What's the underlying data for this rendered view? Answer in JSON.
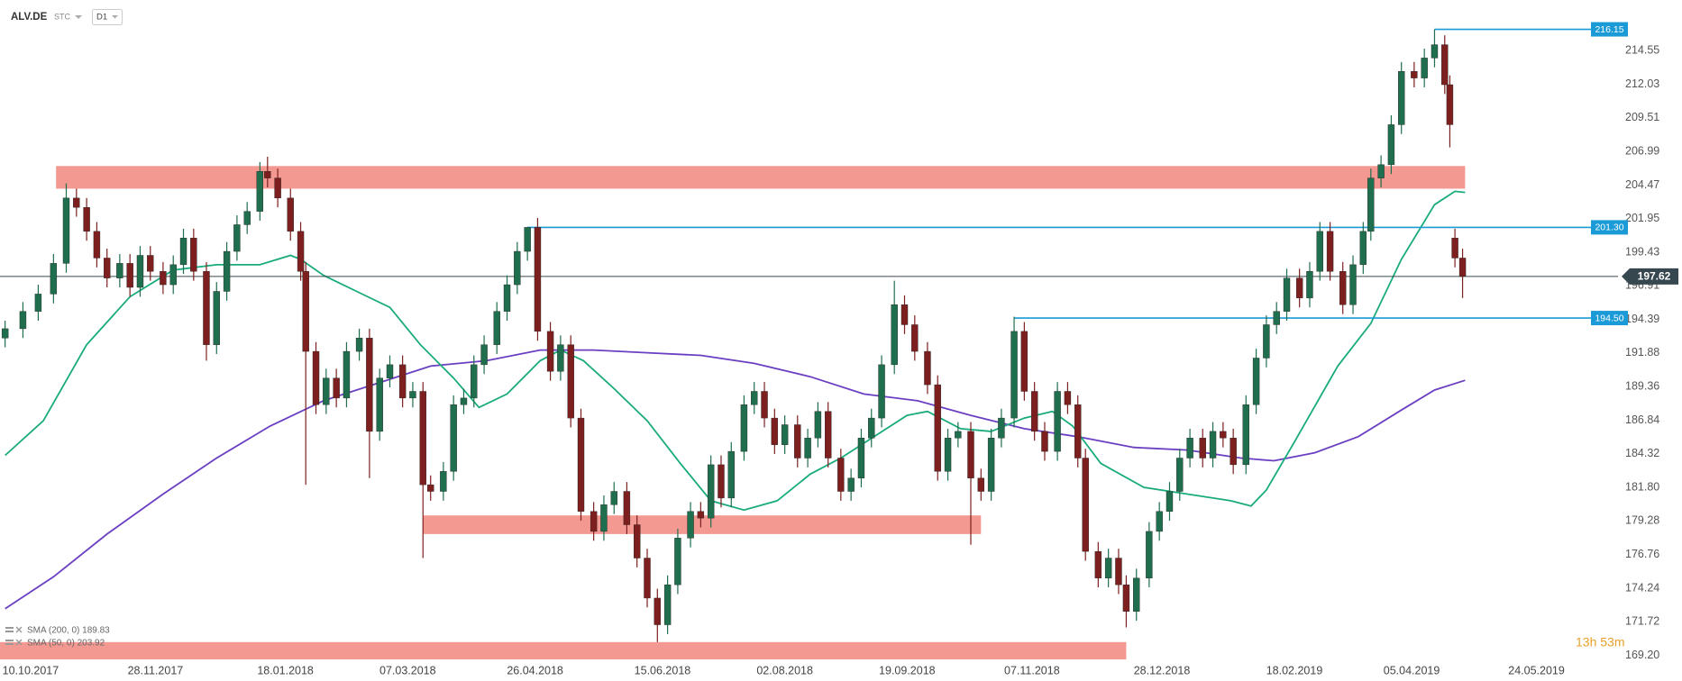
{
  "header": {
    "symbol": "ALV.DE",
    "instrument_type": "STC",
    "interval": "D1"
  },
  "countdown": "13h 53m",
  "chart_data": {
    "type": "candlestick",
    "up_color": "#1f6e4d",
    "down_color": "#7d1f1f",
    "dates": [
      "30.09.2017",
      "07.10.2017",
      "13.10.2017",
      "19.10.2017",
      "24.10.2017",
      "28.10.2017",
      "01.11.2017",
      "05.11.2017",
      "09.11.2017",
      "14.11.2017",
      "18.11.2017",
      "22.11.2017",
      "26.11.2017",
      "01.12.2017",
      "05.12.2017",
      "09.12.2017",
      "13.12.2017",
      "18.12.2017",
      "22.12.2017",
      "26.12.2017",
      "30.12.2017",
      "03.01.2018",
      "08.01.2018",
      "11.01.2018",
      "15.01.2018",
      "20.01.2018",
      "24.01.2018",
      "26.01.2018",
      "30.01.2018",
      "03.02.2018",
      "07.02.2018",
      "11.02.2018",
      "16.02.2018",
      "20.02.2018",
      "24.02.2018",
      "28.02.2018",
      "05.03.2018",
      "09.03.2018",
      "13.03.2018",
      "16.03.2018",
      "21.03.2018",
      "25.03.2018",
      "29.03.2018",
      "02.04.2018",
      "06.04.2018",
      "11.04.2018",
      "15.04.2018",
      "19.04.2018",
      "23.04.2018",
      "27.04.2018",
      "02.05.2018",
      "06.05.2018",
      "10.05.2018",
      "14.05.2018",
      "19.05.2018",
      "23.05.2018",
      "27.05.2018",
      "01.06.2018",
      "05.06.2018",
      "09.06.2018",
      "13.06.2018",
      "17.06.2018",
      "21.06.2018",
      "26.06.2018",
      "30.06.2018",
      "04.07.2018",
      "08.07.2018",
      "12.07.2018",
      "17.07.2018",
      "21.07.2018",
      "25.07.2018",
      "29.07.2018",
      "02.08.2018",
      "07.08.2018",
      "11.08.2018",
      "15.08.2018",
      "19.08.2018",
      "24.08.2018",
      "28.08.2018",
      "01.09.2018",
      "05.09.2018",
      "09.09.2018",
      "14.09.2018",
      "18.09.2018",
      "22.09.2018",
      "27.09.2018",
      "01.10.2018",
      "05.10.2018",
      "09.10.2018",
      "14.10.2018",
      "18.10.2018",
      "22.10.2018",
      "26.10.2018",
      "31.10.2018",
      "04.11.2018",
      "08.11.2018",
      "12.11.2018",
      "17.11.2018",
      "21.11.2018",
      "25.11.2018",
      "28.11.2018",
      "03.12.2018",
      "07.12.2018",
      "11.12.2018",
      "14.12.2018",
      "18.12.2018",
      "23.12.2018",
      "27.12.2018",
      "31.12.2018",
      "04.01.2019",
      "08.01.2019",
      "13.01.2019",
      "17.01.2019",
      "21.01.2019",
      "25.01.2019",
      "30.01.2019",
      "03.02.2019",
      "07.02.2019",
      "11.02.2019",
      "15.02.2019",
      "20.02.2019",
      "24.02.2019",
      "28.02.2019",
      "04.03.2019",
      "09.03.2019",
      "13.03.2019",
      "17.03.2019",
      "20.03.2019",
      "24.03.2019",
      "28.03.2019",
      "01.04.2019",
      "06.04.2019",
      "10.04.2019",
      "14.04.2019",
      "18.04.2019",
      "20.04.2019",
      "22.04.2019",
      "25.04.2019"
    ],
    "open": [
      193.0,
      193.7,
      195.0,
      196.3,
      198.6,
      203.5,
      202.8,
      201.0,
      199.0,
      197.5,
      198.6,
      196.8,
      199.2,
      198.0,
      197.0,
      198.5,
      200.5,
      198.0,
      192.5,
      196.5,
      199.5,
      201.5,
      202.5,
      205.5,
      205.0,
      203.5,
      201.0,
      198.0,
      192.0,
      188.0,
      190.0,
      188.5,
      192.0,
      193.0,
      186.0,
      190.0,
      191.0,
      188.5,
      189.0,
      182.0,
      181.5,
      183.0,
      188.0,
      188.5,
      191.0,
      192.5,
      195.0,
      197.0,
      199.5,
      201.3,
      193.5,
      190.5,
      192.5,
      187.0,
      180.0,
      178.5,
      180.5,
      181.5,
      179.0,
      176.5,
      173.5,
      171.5,
      174.5,
      178.0,
      180.0,
      179.5,
      183.5,
      181.0,
      184.5,
      188.0,
      189.0,
      187.0,
      185.0,
      186.5,
      184.0,
      185.5,
      187.5,
      184.0,
      181.5,
      182.5,
      185.5,
      187.0,
      191.0,
      195.5,
      194.0,
      192.0,
      189.5,
      183.0,
      185.5,
      186.0,
      182.5,
      181.5,
      185.5,
      187.0,
      193.5,
      189.0,
      186.0,
      184.5,
      189.0,
      188.0,
      184.0,
      177.0,
      175.0,
      176.5,
      174.5,
      172.5,
      175.0,
      178.5,
      180.0,
      181.5,
      184.0,
      185.5,
      184.0,
      186.0,
      185.5,
      183.5,
      188.0,
      191.5,
      194.0,
      195.0,
      197.5,
      196.0,
      198.0,
      201.0,
      198.0,
      195.5,
      198.5,
      201.0,
      205.0,
      206.0,
      209.0,
      213.0,
      212.5,
      214.0,
      215.0,
      212.0,
      200.5,
      199.0
    ],
    "high": [
      194.3,
      195.7,
      197.0,
      199.3,
      204.6,
      204.2,
      203.5,
      201.7,
      199.7,
      199.3,
      199.3,
      199.9,
      199.9,
      198.7,
      199.2,
      201.2,
      201.2,
      198.7,
      197.2,
      200.2,
      202.2,
      203.2,
      206.2,
      206.6,
      205.7,
      204.2,
      201.7,
      198.7,
      192.7,
      190.7,
      190.7,
      192.7,
      193.7,
      193.7,
      190.7,
      191.7,
      191.7,
      189.7,
      189.7,
      182.7,
      183.7,
      188.7,
      189.2,
      191.7,
      193.2,
      195.7,
      197.7,
      200.2,
      201.3,
      202.0,
      194.2,
      193.2,
      193.2,
      187.7,
      180.7,
      181.2,
      182.2,
      182.2,
      179.7,
      177.2,
      174.2,
      175.2,
      178.7,
      180.7,
      180.7,
      184.2,
      184.2,
      185.2,
      188.7,
      189.7,
      189.7,
      187.7,
      187.2,
      187.2,
      186.2,
      188.2,
      188.2,
      184.7,
      183.2,
      186.2,
      187.7,
      191.7,
      197.3,
      196.2,
      194.7,
      192.7,
      190.2,
      186.2,
      186.7,
      186.7,
      183.2,
      186.2,
      187.7,
      194.6,
      194.2,
      189.7,
      186.7,
      189.7,
      189.7,
      188.7,
      184.7,
      177.7,
      177.2,
      177.2,
      175.2,
      175.7,
      179.2,
      180.7,
      182.2,
      184.7,
      186.2,
      186.2,
      186.7,
      186.7,
      186.2,
      188.7,
      192.2,
      194.7,
      195.7,
      198.2,
      198.2,
      198.7,
      201.7,
      201.7,
      198.7,
      199.2,
      201.7,
      205.7,
      206.7,
      209.7,
      213.7,
      213.7,
      214.7,
      216.15,
      215.7,
      212.7,
      201.2,
      199.7
    ],
    "low": [
      192.3,
      193.0,
      194.3,
      195.6,
      197.9,
      202.1,
      200.3,
      198.3,
      196.8,
      196.8,
      196.1,
      196.1,
      197.3,
      196.3,
      196.3,
      197.8,
      197.3,
      191.3,
      191.8,
      195.8,
      198.8,
      200.8,
      201.8,
      204.3,
      202.8,
      200.3,
      197.3,
      182.0,
      187.3,
      187.3,
      187.8,
      187.8,
      191.3,
      182.5,
      185.3,
      189.3,
      187.8,
      187.8,
      176.5,
      180.8,
      180.8,
      182.3,
      187.3,
      187.8,
      190.3,
      191.8,
      194.3,
      196.3,
      198.8,
      192.8,
      189.8,
      189.8,
      186.3,
      179.3,
      177.8,
      177.8,
      179.8,
      178.3,
      175.8,
      172.8,
      170.2,
      170.8,
      173.8,
      177.3,
      178.8,
      178.8,
      180.3,
      180.3,
      183.8,
      187.3,
      186.3,
      184.3,
      184.3,
      183.3,
      183.3,
      184.8,
      183.3,
      180.8,
      180.8,
      181.8,
      184.8,
      186.3,
      190.3,
      193.3,
      191.3,
      188.8,
      182.3,
      182.3,
      184.8,
      177.5,
      180.8,
      180.8,
      184.8,
      186.3,
      188.3,
      185.3,
      183.8,
      183.8,
      187.3,
      183.3,
      176.3,
      174.3,
      174.3,
      173.8,
      171.3,
      171.8,
      174.3,
      177.8,
      179.3,
      180.8,
      183.3,
      183.3,
      183.3,
      184.8,
      182.8,
      182.8,
      187.3,
      190.8,
      193.3,
      194.3,
      195.3,
      195.3,
      197.3,
      197.3,
      194.8,
      194.8,
      197.8,
      200.3,
      204.3,
      205.3,
      208.3,
      211.8,
      211.8,
      213.3,
      211.3,
      207.3,
      198.3,
      196.0
    ],
    "close": [
      193.7,
      195.0,
      196.3,
      198.6,
      203.5,
      202.8,
      201.0,
      199.0,
      197.5,
      198.6,
      196.8,
      199.2,
      198.0,
      197.0,
      198.5,
      200.5,
      198.0,
      192.5,
      196.5,
      199.5,
      201.5,
      202.5,
      205.5,
      205.0,
      203.5,
      201.0,
      198.0,
      192.0,
      188.0,
      190.0,
      188.5,
      192.0,
      193.0,
      186.0,
      190.0,
      191.0,
      188.5,
      189.0,
      182.0,
      181.5,
      183.0,
      188.0,
      188.5,
      191.0,
      192.5,
      195.0,
      197.0,
      199.5,
      201.3,
      193.5,
      190.5,
      192.5,
      187.0,
      180.0,
      178.5,
      180.5,
      181.5,
      179.0,
      176.5,
      173.5,
      171.5,
      174.5,
      178.0,
      180.0,
      179.5,
      183.5,
      181.0,
      184.5,
      188.0,
      189.0,
      187.0,
      185.0,
      186.5,
      184.0,
      185.5,
      187.5,
      184.0,
      181.5,
      182.5,
      185.5,
      187.0,
      191.0,
      195.5,
      194.0,
      192.0,
      189.5,
      183.0,
      185.5,
      186.0,
      182.5,
      181.5,
      185.5,
      187.0,
      193.5,
      189.0,
      186.0,
      184.5,
      189.0,
      188.0,
      184.0,
      177.0,
      175.0,
      176.5,
      174.5,
      172.5,
      175.0,
      178.5,
      180.0,
      181.5,
      184.0,
      185.5,
      184.0,
      186.0,
      185.5,
      183.5,
      188.0,
      191.5,
      194.0,
      195.0,
      197.5,
      196.0,
      198.0,
      201.0,
      198.0,
      195.5,
      198.5,
      201.0,
      205.0,
      206.0,
      209.0,
      213.0,
      212.5,
      214.0,
      215.0,
      212.0,
      209.0,
      199.0,
      197.62
    ],
    "indicators": [
      {
        "name": "SMA (200, 0) 189.83",
        "color": "#6b3fc2",
        "x": [
          "30.09.2017",
          "19.10.2017",
          "09.11.2017",
          "01.12.2017",
          "22.12.2017",
          "12.01.2018",
          "02.02.2018",
          "23.02.2018",
          "16.03.2018",
          "07.04.2018",
          "28.04.2018",
          "19.05.2018",
          "09.06.2018",
          "30.06.2018",
          "21.07.2018",
          "12.08.2018",
          "02.09.2018",
          "23.09.2018",
          "14.10.2018",
          "04.11.2018",
          "25.11.2018",
          "17.12.2018",
          "07.01.2019",
          "28.01.2019",
          "10.02.2019",
          "26.02.2019",
          "15.03.2019",
          "01.04.2019",
          "14.04.2019",
          "26.04.2019"
        ],
        "values": [
          172.7,
          175.1,
          178.3,
          181.3,
          184.0,
          186.4,
          188.3,
          189.6,
          190.9,
          191.3,
          192.1,
          192.1,
          191.9,
          191.7,
          191.1,
          190.1,
          188.8,
          188.3,
          187.2,
          186.2,
          185.6,
          184.8,
          184.6,
          184.0,
          183.8,
          184.4,
          185.6,
          187.6,
          189.1,
          189.83
        ]
      },
      {
        "name": "SMA (50, 0) 203.92",
        "color": "#1aab7d",
        "x": [
          "30.09.2017",
          "15.10.2017",
          "01.11.2017",
          "18.11.2017",
          "05.12.2017",
          "22.12.2017",
          "08.01.2018",
          "20.01.2018",
          "24.01.2018",
          "02.02.2018",
          "15.02.2018",
          "28.02.2018",
          "12.03.2018",
          "25.03.2018",
          "04.04.2018",
          "15.04.2018",
          "28.04.2018",
          "06.05.2018",
          "15.05.2018",
          "27.05.2018",
          "09.06.2018",
          "22.06.2018",
          "04.07.2018",
          "17.07.2018",
          "30.07.2018",
          "12.08.2018",
          "24.08.2018",
          "06.09.2018",
          "19.09.2018",
          "27.09.2018",
          "10.10.2018",
          "22.10.2018",
          "04.11.2018",
          "15.11.2018",
          "23.11.2018",
          "04.12.2018",
          "21.12.2018",
          "07.01.2019",
          "24.01.2019",
          "01.02.2019",
          "07.02.2019",
          "18.02.2019",
          "07.03.2019",
          "20.03.2019",
          "01.04.2019",
          "14.04.2019",
          "22.04.2019",
          "26.04.2019"
        ],
        "values": [
          184.2,
          186.8,
          192.5,
          196.1,
          198.1,
          198.5,
          198.5,
          199.2,
          198.9,
          197.7,
          196.5,
          195.3,
          192.5,
          190.0,
          187.8,
          188.8,
          191.3,
          192.1,
          191.3,
          189.2,
          186.8,
          183.6,
          180.8,
          180.1,
          180.8,
          182.8,
          184.0,
          185.6,
          187.2,
          187.5,
          186.2,
          186.0,
          187.0,
          187.5,
          186.4,
          183.6,
          181.8,
          181.3,
          180.8,
          180.4,
          181.6,
          185.2,
          190.9,
          194.1,
          198.9,
          203.0,
          204.0,
          203.92
        ]
      }
    ],
    "zones": [
      {
        "from": "20.10.2017",
        "to": "26.04.2019",
        "low": 204.2,
        "high": 205.9,
        "color": "#f0837a"
      },
      {
        "from": "13.03.2018",
        "to": "18.10.2018",
        "low": 178.3,
        "high": 179.7,
        "color": "#f0837a"
      },
      {
        "from": "28.09.2017",
        "to": "14.12.2018",
        "low": 168.9,
        "high": 170.2,
        "color": "#f0837a"
      }
    ],
    "levels": [
      {
        "value": 216.15,
        "from": "14.04.2019",
        "color": "#1a9ad6"
      },
      {
        "value": 201.3,
        "label": "201.30",
        "from": "23.04.2018",
        "color": "#1a9ad6"
      },
      {
        "value": 194.5,
        "label": "194.50",
        "from": "31.10.2018",
        "color": "#1a9ad6"
      }
    ],
    "last_price_color": "#37474f",
    "xlim": [
      "28.09.2017",
      "25.06.2019"
    ],
    "xticks": [
      "10.10.2017",
      "28.11.2017",
      "18.01.2018",
      "07.03.2018",
      "26.04.2018",
      "15.06.2018",
      "02.08.2018",
      "19.09.2018",
      "07.11.2018",
      "28.12.2018",
      "18.02.2019",
      "05.04.2019",
      "24.05.2019"
    ],
    "ylim": [
      168.7,
      218.35
    ],
    "yticks": [
      214.55,
      212.03,
      209.51,
      206.99,
      204.47,
      201.95,
      199.43,
      196.91,
      194.39,
      191.88,
      189.36,
      186.84,
      184.32,
      {
        "value": 181.8,
        "label": "181.80"
      },
      179.28,
      176.76,
      174.24,
      171.72,
      {
        "value": 169.2,
        "label": "169.20"
      }
    ],
    "grid": false
  }
}
